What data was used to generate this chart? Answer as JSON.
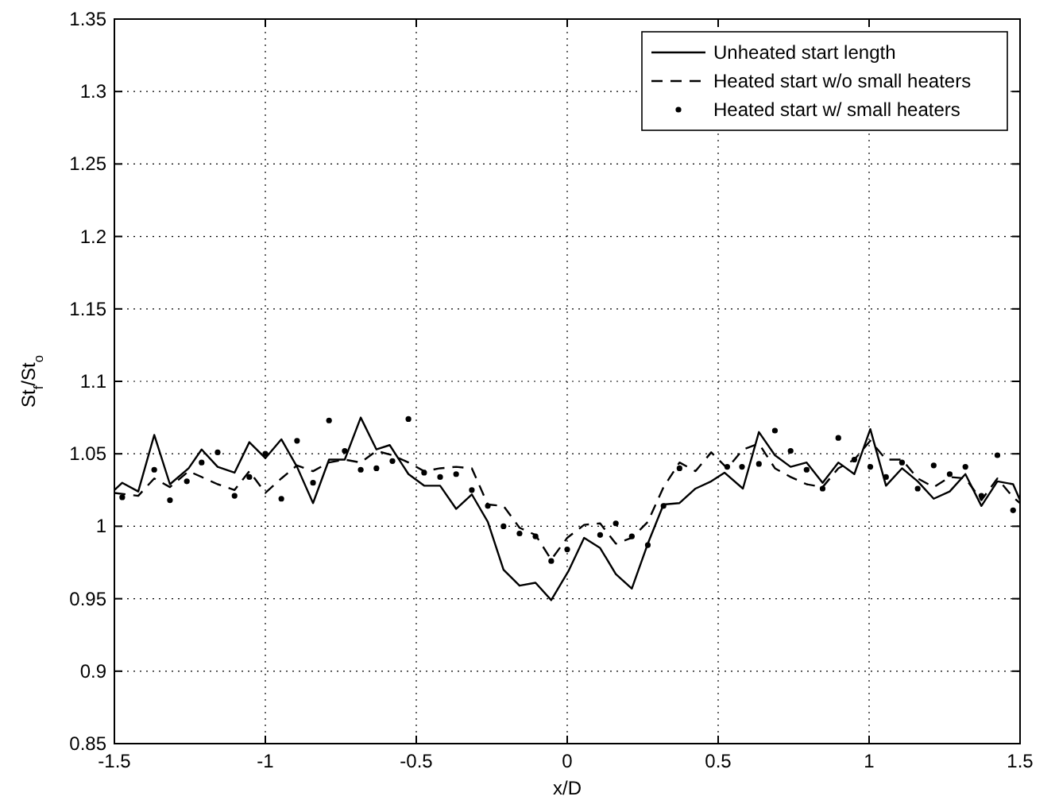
{
  "chart_data": {
    "type": "line",
    "xlabel": "x/D",
    "ylabel": "St$_{f}$/St$_{o}$",
    "xlim": [
      -1.5,
      1.5
    ],
    "ylim": [
      0.85,
      1.35
    ],
    "xticks": [
      -1.5,
      -1,
      -0.5,
      0,
      0.5,
      1,
      1.5
    ],
    "yticks": [
      0.85,
      0.9,
      0.95,
      1,
      1.05,
      1.1,
      1.15,
      1.2,
      1.25,
      1.3,
      1.35
    ],
    "grid": true,
    "legend": "top right",
    "series": [
      {
        "name": "Unheated start length",
        "color": "#000000",
        "line_style": "solid",
        "marker": "none",
        "x": [
          -1.5,
          -1.474,
          -1.421,
          -1.368,
          -1.316,
          -1.254,
          -1.211,
          -1.158,
          -1.102,
          -1.053,
          -1.0,
          -0.947,
          -0.895,
          -0.842,
          -0.789,
          -0.737,
          -0.684,
          -0.632,
          -0.588,
          -0.526,
          -0.474,
          -0.421,
          -0.368,
          -0.316,
          -0.263,
          -0.211,
          -0.158,
          -0.105,
          -0.053,
          0.004,
          0.056,
          0.109,
          0.161,
          0.214,
          0.267,
          0.319,
          0.372,
          0.425,
          0.477,
          0.521,
          0.582,
          0.635,
          0.688,
          0.74,
          0.793,
          0.846,
          0.898,
          0.951,
          1.004,
          1.056,
          1.109,
          1.161,
          1.214,
          1.267,
          1.319,
          1.372,
          1.425,
          1.477,
          1.5
        ],
        "values": [
          1.025,
          1.03,
          1.024,
          1.063,
          1.029,
          1.04,
          1.053,
          1.041,
          1.037,
          1.058,
          1.047,
          1.06,
          1.041,
          1.016,
          1.046,
          1.046,
          1.075,
          1.053,
          1.056,
          1.036,
          1.028,
          1.028,
          1.012,
          1.022,
          1.003,
          0.97,
          0.959,
          0.961,
          0.949,
          0.969,
          0.992,
          0.985,
          0.967,
          0.957,
          0.988,
          1.015,
          1.016,
          1.026,
          1.031,
          1.037,
          1.026,
          1.065,
          1.049,
          1.041,
          1.044,
          1.03,
          1.044,
          1.036,
          1.067,
          1.028,
          1.04,
          1.031,
          1.019,
          1.024,
          1.036,
          1.014,
          1.031,
          1.029,
          1.018
        ]
      },
      {
        "name": "Heated start w/o small heaters",
        "color": "#000000",
        "line_style": "dashed",
        "marker": "none",
        "x": [
          -1.5,
          -1.421,
          -1.368,
          -1.316,
          -1.254,
          -1.158,
          -1.102,
          -1.053,
          -1.0,
          -0.947,
          -0.895,
          -0.842,
          -0.789,
          -0.737,
          -0.684,
          -0.632,
          -0.579,
          -0.526,
          -0.474,
          -0.421,
          -0.368,
          -0.316,
          -0.263,
          -0.211,
          -0.158,
          -0.105,
          -0.053,
          0.0,
          0.056,
          0.109,
          0.161,
          0.214,
          0.267,
          0.319,
          0.372,
          0.425,
          0.477,
          0.53,
          0.582,
          0.635,
          0.688,
          0.74,
          0.793,
          0.846,
          0.898,
          0.951,
          1.004,
          1.056,
          1.109,
          1.161,
          1.214,
          1.267,
          1.319,
          1.372,
          1.425,
          1.477,
          1.5
        ],
        "values": [
          1.023,
          1.021,
          1.033,
          1.027,
          1.038,
          1.029,
          1.025,
          1.038,
          1.023,
          1.033,
          1.042,
          1.038,
          1.044,
          1.046,
          1.044,
          1.052,
          1.049,
          1.044,
          1.038,
          1.04,
          1.041,
          1.04,
          1.015,
          1.014,
          0.999,
          0.994,
          0.977,
          0.992,
          1.001,
          1.002,
          0.988,
          0.992,
          1.003,
          1.027,
          1.044,
          1.038,
          1.051,
          1.04,
          1.053,
          1.057,
          1.04,
          1.034,
          1.029,
          1.027,
          1.04,
          1.046,
          1.059,
          1.046,
          1.046,
          1.033,
          1.027,
          1.034,
          1.033,
          1.018,
          1.033,
          1.02,
          1.016
        ]
      },
      {
        "name": "Heated start w/ small heaters",
        "color": "#000000",
        "type": "scatter",
        "marker": "circle",
        "x": [
          -1.474,
          -1.368,
          -1.316,
          -1.26,
          -1.211,
          -1.158,
          -1.102,
          -1.053,
          -1.0,
          -0.947,
          -0.895,
          -0.842,
          -0.789,
          -0.737,
          -0.684,
          -0.632,
          -0.579,
          -0.526,
          -0.474,
          -0.421,
          -0.368,
          -0.316,
          -0.263,
          -0.211,
          -0.158,
          -0.105,
          -0.053,
          0.0,
          0.109,
          0.161,
          0.214,
          0.267,
          0.319,
          0.372,
          0.53,
          0.579,
          0.635,
          0.688,
          0.74,
          0.793,
          0.846,
          0.898,
          0.951,
          1.004,
          1.056,
          1.109,
          1.161,
          1.214,
          1.267,
          1.319,
          1.372,
          1.425,
          1.477
        ],
        "values": [
          1.02,
          1.039,
          1.018,
          1.031,
          1.044,
          1.051,
          1.021,
          1.034,
          1.05,
          1.019,
          1.059,
          1.03,
          1.073,
          1.052,
          1.039,
          1.04,
          1.045,
          1.074,
          1.037,
          1.034,
          1.036,
          1.025,
          1.014,
          1.0,
          0.995,
          0.993,
          0.976,
          0.984,
          0.994,
          1.002,
          0.993,
          0.987,
          1.014,
          1.04,
          1.041,
          1.041,
          1.043,
          1.066,
          1.052,
          1.039,
          1.026,
          1.061,
          1.046,
          1.041,
          1.034,
          1.044,
          1.026,
          1.042,
          1.036,
          1.041,
          1.021,
          1.049,
          1.011
        ]
      }
    ]
  }
}
